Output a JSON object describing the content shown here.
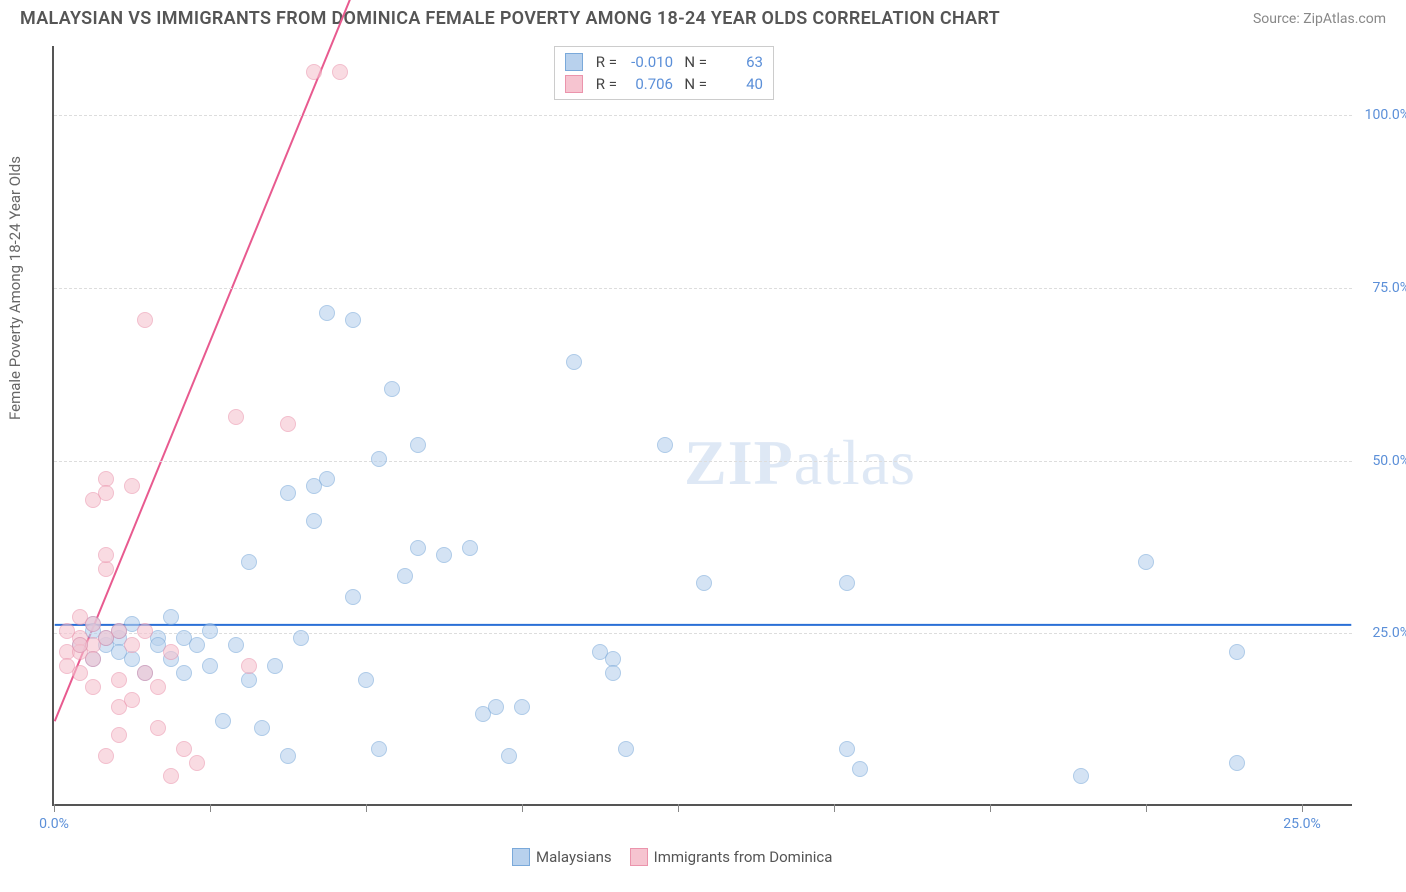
{
  "title": "MALAYSIAN VS IMMIGRANTS FROM DOMINICA FEMALE POVERTY AMONG 18-24 YEAR OLDS CORRELATION CHART",
  "source": "Source: ZipAtlas.com",
  "watermark_zip": "ZIP",
  "watermark_atlas": "atlas",
  "ylabel": "Female Poverty Among 18-24 Year Olds",
  "chart": {
    "type": "scatter",
    "xlim": [
      0,
      100
    ],
    "ylim": [
      0,
      110
    ],
    "xticks": [
      0,
      12,
      24,
      36,
      48,
      60,
      72,
      84,
      96
    ],
    "xtick_labels": {
      "0": "0.0%",
      "96": "25.0%"
    },
    "yticks": [
      25,
      50,
      75,
      100
    ],
    "ytick_labels": {
      "25": "25.0%",
      "50": "50.0%",
      "75": "75.0%",
      "100": "100.0%"
    },
    "gridline_color": "#dddddd",
    "axis_color": "#555555",
    "tick_label_color": "#5b8fd8",
    "background": "#ffffff",
    "point_radius": 8,
    "series": [
      {
        "name": "Malaysians",
        "fill": "#b8d1ed",
        "stroke": "#7aa9da",
        "fill_opacity": 0.6,
        "trend": {
          "slope": 0.0,
          "intercept": 26,
          "color": "#2a6fd6",
          "width": 2
        },
        "R": "-0.010",
        "N": "63",
        "points": [
          [
            2,
            23
          ],
          [
            3,
            21
          ],
          [
            3,
            26
          ],
          [
            4,
            23
          ],
          [
            5,
            24
          ],
          [
            5,
            22
          ],
          [
            6,
            26
          ],
          [
            6,
            21
          ],
          [
            7,
            19
          ],
          [
            8,
            24
          ],
          [
            8,
            23
          ],
          [
            9,
            27
          ],
          [
            9,
            21
          ],
          [
            10,
            24
          ],
          [
            10,
            19
          ],
          [
            11,
            23
          ],
          [
            12,
            25
          ],
          [
            12,
            20
          ],
          [
            13,
            12
          ],
          [
            14,
            23
          ],
          [
            15,
            18
          ],
          [
            15,
            35
          ],
          [
            16,
            11
          ],
          [
            17,
            20
          ],
          [
            18,
            7
          ],
          [
            18,
            45
          ],
          [
            19,
            24
          ],
          [
            20,
            41
          ],
          [
            20,
            46
          ],
          [
            21,
            47
          ],
          [
            21,
            71
          ],
          [
            23,
            70
          ],
          [
            23,
            30
          ],
          [
            24,
            18
          ],
          [
            25,
            8
          ],
          [
            25,
            50
          ],
          [
            26,
            60
          ],
          [
            27,
            33
          ],
          [
            28,
            37
          ],
          [
            28,
            52
          ],
          [
            30,
            36
          ],
          [
            32,
            37
          ],
          [
            33,
            13
          ],
          [
            34,
            14
          ],
          [
            35,
            7
          ],
          [
            36,
            14
          ],
          [
            40,
            64
          ],
          [
            42,
            22
          ],
          [
            43,
            21
          ],
          [
            43,
            19
          ],
          [
            44,
            8
          ],
          [
            47,
            52
          ],
          [
            50,
            32
          ],
          [
            61,
            32
          ],
          [
            61,
            8
          ],
          [
            62,
            5
          ],
          [
            79,
            4
          ],
          [
            84,
            35
          ],
          [
            91,
            6
          ],
          [
            91,
            22
          ],
          [
            3,
            25
          ],
          [
            4,
            24
          ],
          [
            5,
            25
          ]
        ]
      },
      {
        "name": "Immigrants from Dominica",
        "fill": "#f6c4d0",
        "stroke": "#eb94ac",
        "fill_opacity": 0.6,
        "trend": {
          "slope": 4.6,
          "intercept": 12,
          "color": "#e85a8f",
          "width": 2,
          "dash_after_x": 25
        },
        "R": "0.706",
        "N": "40",
        "points": [
          [
            1,
            22
          ],
          [
            1,
            25
          ],
          [
            1,
            20
          ],
          [
            2,
            24
          ],
          [
            2,
            22
          ],
          [
            2,
            27
          ],
          [
            2,
            19
          ],
          [
            3,
            23
          ],
          [
            3,
            17
          ],
          [
            3,
            44
          ],
          [
            3,
            21
          ],
          [
            4,
            34
          ],
          [
            4,
            47
          ],
          [
            4,
            45
          ],
          [
            4,
            36
          ],
          [
            4,
            7
          ],
          [
            5,
            25
          ],
          [
            5,
            18
          ],
          [
            5,
            10
          ],
          [
            5,
            14
          ],
          [
            6,
            23
          ],
          [
            6,
            46
          ],
          [
            6,
            15
          ],
          [
            7,
            19
          ],
          [
            7,
            25
          ],
          [
            7,
            70
          ],
          [
            8,
            17
          ],
          [
            8,
            11
          ],
          [
            9,
            22
          ],
          [
            9,
            4
          ],
          [
            10,
            8
          ],
          [
            11,
            6
          ],
          [
            14,
            56
          ],
          [
            15,
            20
          ],
          [
            18,
            55
          ],
          [
            20,
            106
          ],
          [
            22,
            106
          ],
          [
            3,
            26
          ],
          [
            2,
            23
          ],
          [
            4,
            24
          ]
        ]
      }
    ],
    "legend_top_labels": {
      "R": "R =",
      "N": "N ="
    }
  }
}
